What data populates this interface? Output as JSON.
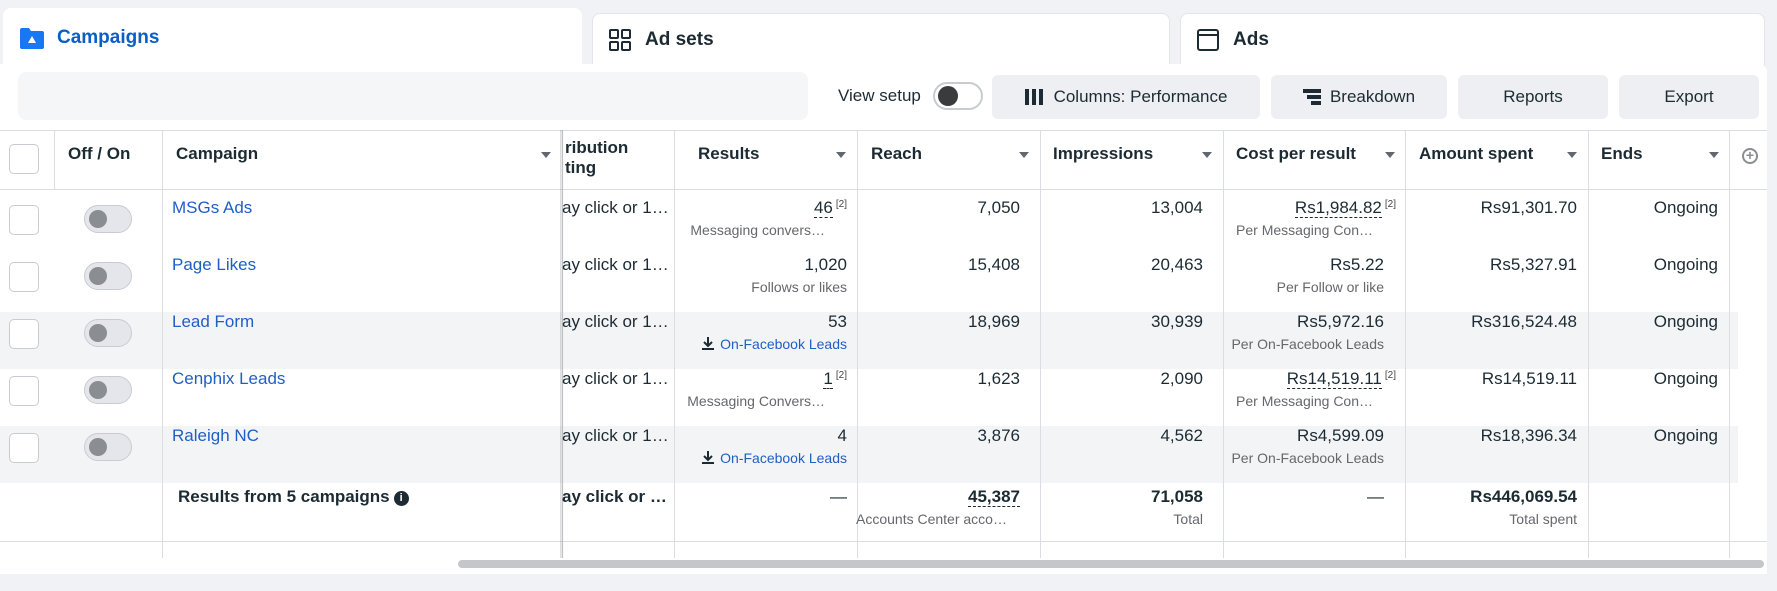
{
  "tabs": {
    "campaigns": "Campaigns",
    "adsets": "Ad sets",
    "ads": "Ads"
  },
  "toolbar": {
    "view_setup": "View setup",
    "columns": "Columns: Performance",
    "breakdown": "Breakdown",
    "reports": "Reports",
    "export": "Export"
  },
  "headers": {
    "off_on": "Off / On",
    "campaign": "Campaign",
    "attribution_line1": "ribution",
    "attribution_line2": "ting",
    "results": "Results",
    "reach": "Reach",
    "impressions": "Impressions",
    "cost_per_result": "Cost per result",
    "amount_spent": "Amount spent",
    "ends": "Ends"
  },
  "rows": [
    {
      "name": "MSGs Ads",
      "attribution": "ay click or 1…",
      "results": "46",
      "results_note": "[2]",
      "results_sub": "Messaging convers…",
      "reach": "7,050",
      "impressions": "13,004",
      "cost": "Rs1,984.82",
      "cost_note": "[2]",
      "cost_sub": "Per Messaging Con…",
      "spent": "Rs91,301.70",
      "ends": "Ongoing"
    },
    {
      "name": "Page Likes",
      "attribution": "ay click or 1…",
      "results": "1,020",
      "results_note": "",
      "results_sub": "Follows or likes",
      "reach": "15,408",
      "impressions": "20,463",
      "cost": "Rs5.22",
      "cost_note": "",
      "cost_sub": "Per Follow or like",
      "spent": "Rs5,327.91",
      "ends": "Ongoing"
    },
    {
      "name": "Lead Form",
      "attribution": "ay click or 1…",
      "results": "53",
      "results_note": "",
      "results_sub": "On-Facebook Leads",
      "reach": "18,969",
      "impressions": "30,939",
      "cost": "Rs5,972.16",
      "cost_note": "",
      "cost_sub": "Per On-Facebook Leads",
      "spent": "Rs316,524.48",
      "ends": "Ongoing"
    },
    {
      "name": "Cenphix Leads",
      "attribution": "ay click or 1…",
      "results": "1",
      "results_note": "[2]",
      "results_sub": "Messaging Convers…",
      "reach": "1,623",
      "impressions": "2,090",
      "cost": "Rs14,519.11",
      "cost_note": "[2]",
      "cost_sub": "Per Messaging Con…",
      "spent": "Rs14,519.11",
      "ends": "Ongoing"
    },
    {
      "name": "Raleigh NC",
      "attribution": "ay click or 1…",
      "results": "4",
      "results_note": "",
      "results_sub": "On-Facebook Leads",
      "reach": "3,876",
      "impressions": "4,562",
      "cost": "Rs4,599.09",
      "cost_note": "",
      "cost_sub": "Per On-Facebook Leads",
      "spent": "Rs18,396.34",
      "ends": "Ongoing"
    }
  ],
  "summary": {
    "label": "Results from 5 campaigns",
    "attribution": "ay click or …",
    "results": "—",
    "reach": "45,387",
    "reach_sub": "Accounts Center acco…",
    "impressions": "71,058",
    "impressions_sub": "Total",
    "cost": "—",
    "spent": "Rs446,069.54",
    "spent_sub": "Total spent"
  },
  "colors": {
    "accent": "#1f5fc4",
    "tab_active": "#0a5fc4"
  }
}
